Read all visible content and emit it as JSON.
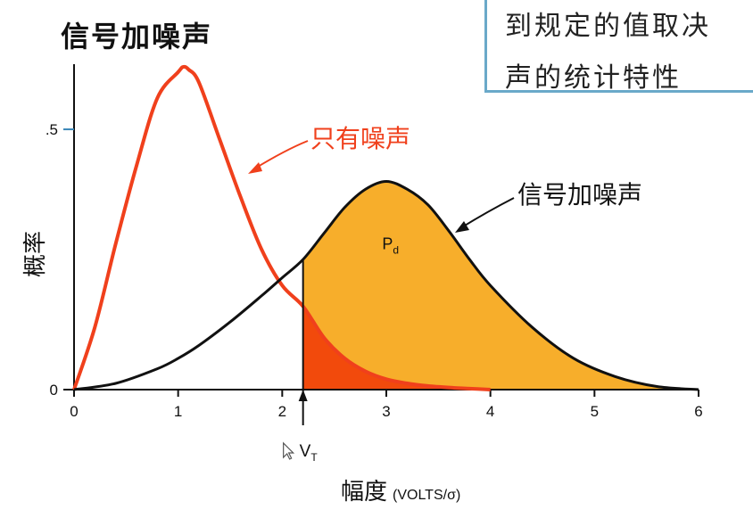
{
  "page_title": "信号加噪声",
  "note_box": {
    "lines": [
      "到规定的值取决",
      "声的统计特性"
    ]
  },
  "chart_data": {
    "type": "area",
    "xlabel": "幅度",
    "xlabel_unit": "(VOLTS/σ)",
    "ylabel": "概率",
    "xlim": [
      0,
      6
    ],
    "ylim": [
      0,
      0.62
    ],
    "x_ticks": [
      "0",
      "1",
      "2",
      "3",
      "4",
      "5",
      "6"
    ],
    "y_ticks": [
      {
        "value": 0,
        "label": "0"
      },
      {
        "value": 0.5,
        "label": ".5"
      }
    ],
    "threshold": {
      "label_main": "V",
      "label_sub": "T",
      "x": 2.2
    },
    "region_label": {
      "main": "P",
      "sub": "d"
    },
    "series": [
      {
        "name": "只有噪声",
        "color": "#f0401c",
        "x": [
          0,
          0.2,
          0.4,
          0.6,
          0.8,
          1.0,
          1.05,
          1.1,
          1.2,
          1.4,
          1.6,
          1.8,
          2.0,
          2.2,
          2.4,
          2.6,
          2.8,
          3.0,
          3.2,
          3.4,
          3.6,
          3.8,
          4.0
        ],
        "y": [
          0,
          0.12,
          0.28,
          0.43,
          0.56,
          0.61,
          0.62,
          0.615,
          0.59,
          0.48,
          0.37,
          0.27,
          0.2,
          0.16,
          0.1,
          0.06,
          0.035,
          0.02,
          0.012,
          0.007,
          0.004,
          0.002,
          0
        ]
      },
      {
        "name": "信号加噪声",
        "color": "#111111",
        "x": [
          0,
          0.4,
          0.8,
          1.0,
          1.2,
          1.5,
          1.8,
          2.0,
          2.2,
          2.4,
          2.6,
          2.8,
          3.0,
          3.2,
          3.4,
          3.6,
          3.8,
          4.0,
          4.4,
          4.8,
          5.2,
          5.6,
          6.0
        ],
        "y": [
          0,
          0.012,
          0.04,
          0.06,
          0.085,
          0.13,
          0.18,
          0.215,
          0.25,
          0.3,
          0.35,
          0.385,
          0.4,
          0.385,
          0.355,
          0.305,
          0.25,
          0.2,
          0.12,
          0.06,
          0.025,
          0.006,
          0
        ]
      }
    ],
    "fill_colors": {
      "detection": "#f7ae2b",
      "false_alarm": "#f24a0c"
    }
  }
}
